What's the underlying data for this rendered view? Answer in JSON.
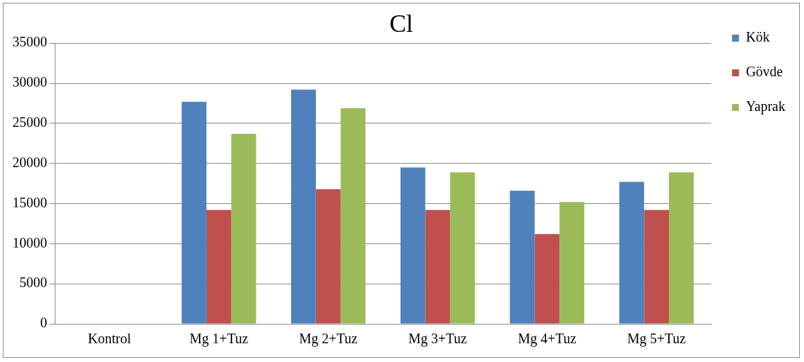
{
  "chart_data": {
    "type": "bar",
    "title": "Cl",
    "categories": [
      "Kontrol",
      "Mg 1+Tuz",
      "Mg 2+Tuz",
      "Mg 3+Tuz",
      "Mg 4+Tuz",
      "Mg 5+Tuz"
    ],
    "series": [
      {
        "name": "Kök",
        "color": "#4f81bd",
        "values": [
          0,
          27700,
          29200,
          19500,
          16600,
          17700
        ]
      },
      {
        "name": "Gövde",
        "color": "#c0504d",
        "values": [
          0,
          14200,
          16800,
          14200,
          11200,
          14200
        ]
      },
      {
        "name": "Yaprak",
        "color": "#9bbb59",
        "values": [
          0,
          23700,
          26900,
          18900,
          15200,
          18900
        ]
      }
    ],
    "ylim": [
      0,
      35000
    ],
    "yticks": [
      0,
      5000,
      10000,
      15000,
      20000,
      25000,
      30000,
      35000
    ],
    "grid": "y",
    "legend": "top right"
  }
}
